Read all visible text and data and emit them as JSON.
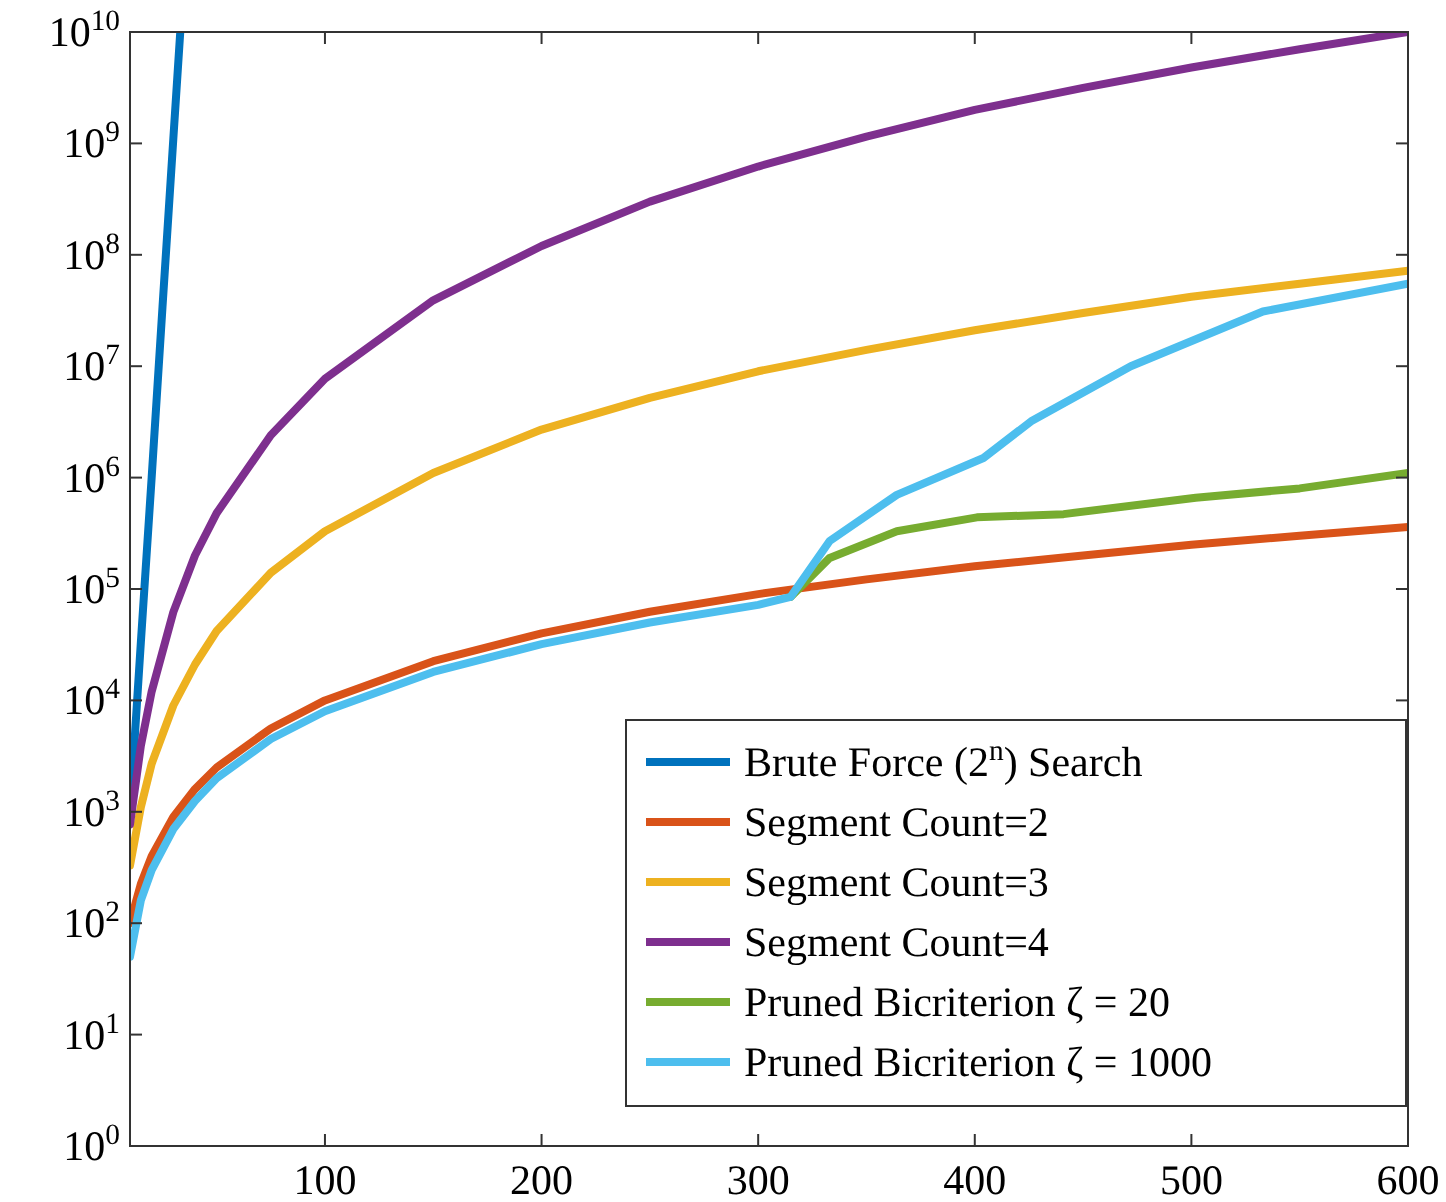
{
  "chart_data": {
    "type": "line",
    "log": "y",
    "xlim": [
      10,
      600
    ],
    "ylim": [
      1,
      10000000000
    ],
    "xticks": [
      100,
      200,
      300,
      400,
      500,
      600
    ],
    "yticks": [
      {
        "value": 1,
        "label": "10$^{0}$"
      },
      {
        "value": 10,
        "label": "10$^{1}$"
      },
      {
        "value": 100,
        "label": "10$^{2}$"
      },
      {
        "value": 1000,
        "label": "10$^{3}$"
      },
      {
        "value": 10000,
        "label": "10$^{4}$"
      },
      {
        "value": 100000,
        "label": "10$^{5}$"
      },
      {
        "value": 1000000,
        "label": "10$^{6}$"
      },
      {
        "value": 10000000,
        "label": "10$^{7}$"
      },
      {
        "value": 100000000,
        "label": "10$^{8}$"
      },
      {
        "value": 1000000000,
        "label": "10$^{9}$"
      },
      {
        "value": 10000000000,
        "label": "10$^{10}$"
      }
    ],
    "grid": false,
    "legend": "bottom right",
    "marker": "none",
    "line_style": "solid",
    "series": [
      {
        "name": "Brute Force (2$^{n}$) Search",
        "color": "#0072bd",
        "x": [
          10,
          15,
          20,
          25,
          30,
          33.2
        ],
        "values": [
          1000,
          33000,
          1000000,
          34000000,
          1100000000,
          10000000000
        ]
      },
      {
        "name": "Segment Count=2",
        "color": "#d95319",
        "x": [
          10,
          15,
          20,
          30,
          40,
          50,
          75,
          100,
          150,
          200,
          250,
          300,
          350,
          400,
          450,
          500,
          550,
          600
        ],
        "values": [
          100,
          225,
          400,
          900,
          1600,
          2500,
          5600,
          10000,
          22500,
          40000,
          62500,
          90000,
          122000,
          160000,
          200000,
          250000,
          300000,
          360000
        ]
      },
      {
        "name": "Segment Count=3",
        "color": "#edb120",
        "x": [
          10,
          15,
          20,
          30,
          40,
          50,
          75,
          100,
          150,
          200,
          250,
          300,
          350,
          400,
          450,
          500,
          550,
          600
        ],
        "values": [
          330,
          1100,
          2700,
          9000,
          21000,
          42000,
          140000,
          330000,
          1100000,
          2700000,
          5200000,
          9000000,
          14000000,
          21000000,
          30000000,
          42000000,
          55000000,
          72000000
        ]
      },
      {
        "name": "Segment Count=4",
        "color": "#7e2f8e",
        "x": [
          10,
          15,
          20,
          30,
          40,
          50,
          75,
          100,
          150,
          200,
          250,
          300,
          350,
          400,
          450,
          500,
          550,
          600
        ],
        "values": [
          770,
          3900,
          12000,
          62000,
          200000,
          480000,
          2400000,
          7700000,
          39000000,
          120000000,
          300000000,
          620000000,
          1150000000,
          2000000000,
          3150000000,
          4800000000,
          7000000000,
          10000000000
        ]
      },
      {
        "name": "Pruned Bicriterion ζ = 20",
        "color": "#77ac30",
        "x": [
          315,
          333,
          364,
          401,
          441,
          502,
          550,
          600
        ],
        "values": [
          85000,
          190000,
          330000,
          440000,
          470000,
          660000,
          800000,
          1100000
        ]
      },
      {
        "name": "Pruned Bicriterion ζ = 1000",
        "color": "#4dbeee",
        "x": [
          10,
          15,
          20,
          30,
          40,
          50,
          75,
          100,
          150,
          200,
          250,
          300,
          315,
          333,
          364,
          404,
          426,
          472,
          533,
          600
        ],
        "values": [
          50,
          160,
          300,
          700,
          1250,
          2000,
          4500,
          8000,
          18000,
          32000,
          50000,
          72000,
          85000,
          270000,
          700000,
          1500000,
          3200000,
          10000000,
          31000000,
          55000000
        ]
      }
    ]
  }
}
